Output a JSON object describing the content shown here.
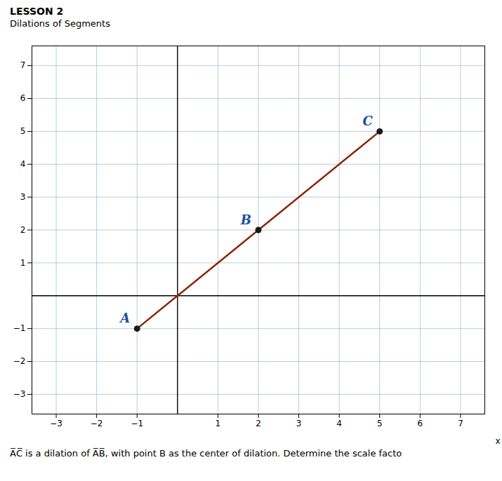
{
  "chart_data": {
    "type": "line",
    "title": "LESSON 2",
    "subtitle": "Dilations of Segments",
    "caption": "A̅C̅ is a dilation of A̅B̅, with point B as the center of dilation. Determine the scale facto",
    "xlabel": "x",
    "xlim": [
      -3.6,
      7.6
    ],
    "ylim": [
      -3.6,
      7.6
    ],
    "xticks": [
      -3,
      -2,
      -1,
      1,
      2,
      3,
      4,
      5,
      6,
      7
    ],
    "yticks": [
      -3,
      -2,
      -1,
      1,
      2,
      3,
      4,
      5,
      6,
      7
    ],
    "grid": true,
    "series": [
      {
        "type": "line",
        "color": "#8B2500",
        "x": [
          -1,
          5
        ],
        "values": [
          -1,
          5
        ]
      },
      {
        "type": "scatter",
        "color": "#1a1a1a",
        "x": [
          -1,
          2,
          5
        ],
        "values": [
          -1,
          2,
          5
        ]
      }
    ],
    "annotations": [
      {
        "text": "A",
        "x": -1,
        "y": -1,
        "color": "#1a4fa0"
      },
      {
        "text": "B",
        "x": 2,
        "y": 2,
        "color": "#1a4fa0"
      },
      {
        "text": "C",
        "x": 5,
        "y": 5,
        "color": "#1a4fa0"
      }
    ]
  }
}
